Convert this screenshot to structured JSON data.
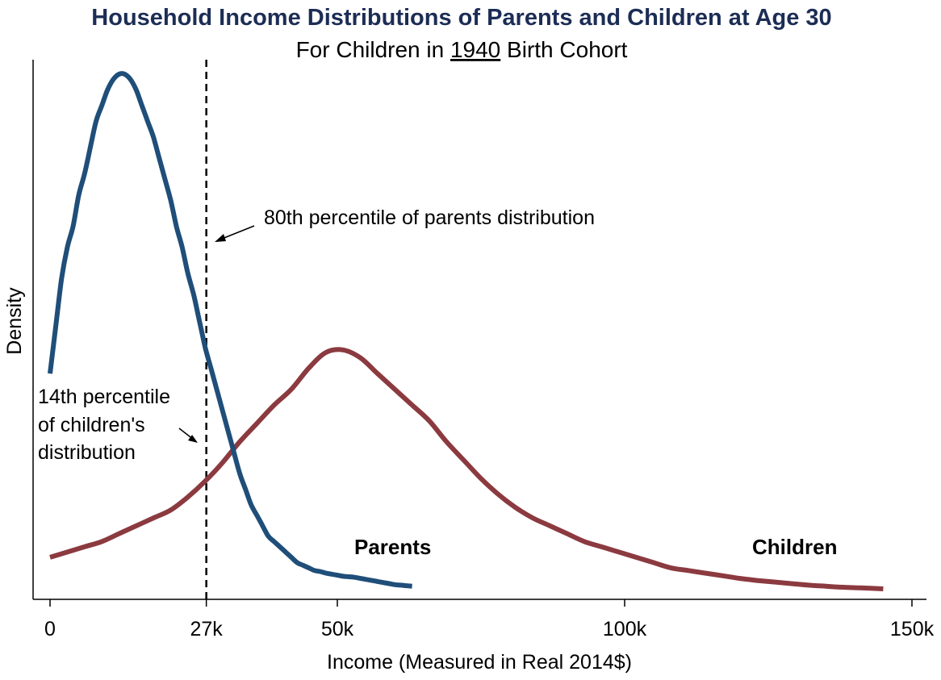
{
  "chart_data": {
    "type": "line",
    "title": "Household Income Distributions of Parents and Children at Age 30",
    "subtitle": {
      "prefix": "For Children in ",
      "year": "1940",
      "suffix": " Birth Cohort"
    },
    "xlabel": "Income (Measured in Real 2014$)",
    "ylabel": "Density",
    "xlim": [
      -3,
      151
    ],
    "ylim": [
      0,
      1.03
    ],
    "xticks": [
      {
        "value": 0,
        "label": "0"
      },
      {
        "value": 27.2,
        "label": "27k"
      },
      {
        "value": 50,
        "label": "50k"
      },
      {
        "value": 100,
        "label": "100k"
      },
      {
        "value": 150,
        "label": "150k"
      }
    ],
    "reference_line": {
      "x": 27.2,
      "style": "dashed"
    },
    "series": [
      {
        "name": "Parents",
        "color": "#1f4e79",
        "x": [
          0,
          1,
          2,
          3,
          4,
          5,
          6,
          7,
          8,
          9,
          10,
          11,
          12,
          13,
          14,
          15,
          16,
          17,
          18,
          19,
          20,
          21,
          22,
          23,
          24,
          25,
          26,
          27,
          28,
          29,
          30,
          31,
          32,
          33,
          34,
          35,
          36,
          37,
          38,
          39,
          40,
          41,
          42,
          43,
          44,
          45,
          46,
          47,
          48,
          49,
          50,
          51,
          52,
          53,
          54,
          55,
          56,
          57,
          58,
          59,
          60,
          61,
          62,
          63
        ],
        "values": [
          0.43,
          0.52,
          0.61,
          0.67,
          0.71,
          0.77,
          0.81,
          0.86,
          0.91,
          0.94,
          0.97,
          0.99,
          1.0,
          1.0,
          0.99,
          0.97,
          0.94,
          0.91,
          0.88,
          0.84,
          0.8,
          0.76,
          0.71,
          0.67,
          0.62,
          0.58,
          0.53,
          0.48,
          0.44,
          0.4,
          0.36,
          0.32,
          0.28,
          0.24,
          0.21,
          0.18,
          0.16,
          0.14,
          0.12,
          0.11,
          0.1,
          0.09,
          0.08,
          0.07,
          0.065,
          0.06,
          0.055,
          0.053,
          0.05,
          0.048,
          0.046,
          0.044,
          0.043,
          0.042,
          0.04,
          0.038,
          0.036,
          0.034,
          0.032,
          0.03,
          0.028,
          0.027,
          0.026,
          0.025
        ]
      },
      {
        "name": "Children",
        "color": "#8b3a3f",
        "x": [
          0,
          3,
          6,
          9,
          12,
          15,
          18,
          21,
          24,
          27,
          30,
          33,
          36,
          39,
          42,
          45,
          48,
          51,
          54,
          57,
          60,
          63,
          66,
          69,
          72,
          75,
          78,
          81,
          84,
          87,
          90,
          93,
          96,
          99,
          102,
          105,
          108,
          111,
          114,
          117,
          120,
          123,
          126,
          129,
          132,
          135,
          138,
          141,
          145
        ],
        "values": [
          0.08,
          0.09,
          0.1,
          0.11,
          0.125,
          0.14,
          0.155,
          0.17,
          0.195,
          0.225,
          0.26,
          0.3,
          0.335,
          0.37,
          0.4,
          0.44,
          0.47,
          0.475,
          0.46,
          0.43,
          0.4,
          0.37,
          0.34,
          0.3,
          0.265,
          0.23,
          0.2,
          0.175,
          0.155,
          0.14,
          0.125,
          0.11,
          0.1,
          0.09,
          0.08,
          0.07,
          0.06,
          0.055,
          0.05,
          0.045,
          0.04,
          0.036,
          0.033,
          0.03,
          0.027,
          0.025,
          0.023,
          0.022,
          0.02
        ]
      }
    ],
    "annotations": [
      {
        "id": "parents-80th",
        "text": [
          "80th percentile of parents distribution"
        ]
      },
      {
        "id": "children-14th",
        "text": [
          "14th percentile",
          "of children's",
          "distribution"
        ]
      }
    ],
    "series_labels": [
      {
        "name": "Parents",
        "text": "Parents"
      },
      {
        "name": "Children",
        "text": "Children"
      }
    ]
  }
}
